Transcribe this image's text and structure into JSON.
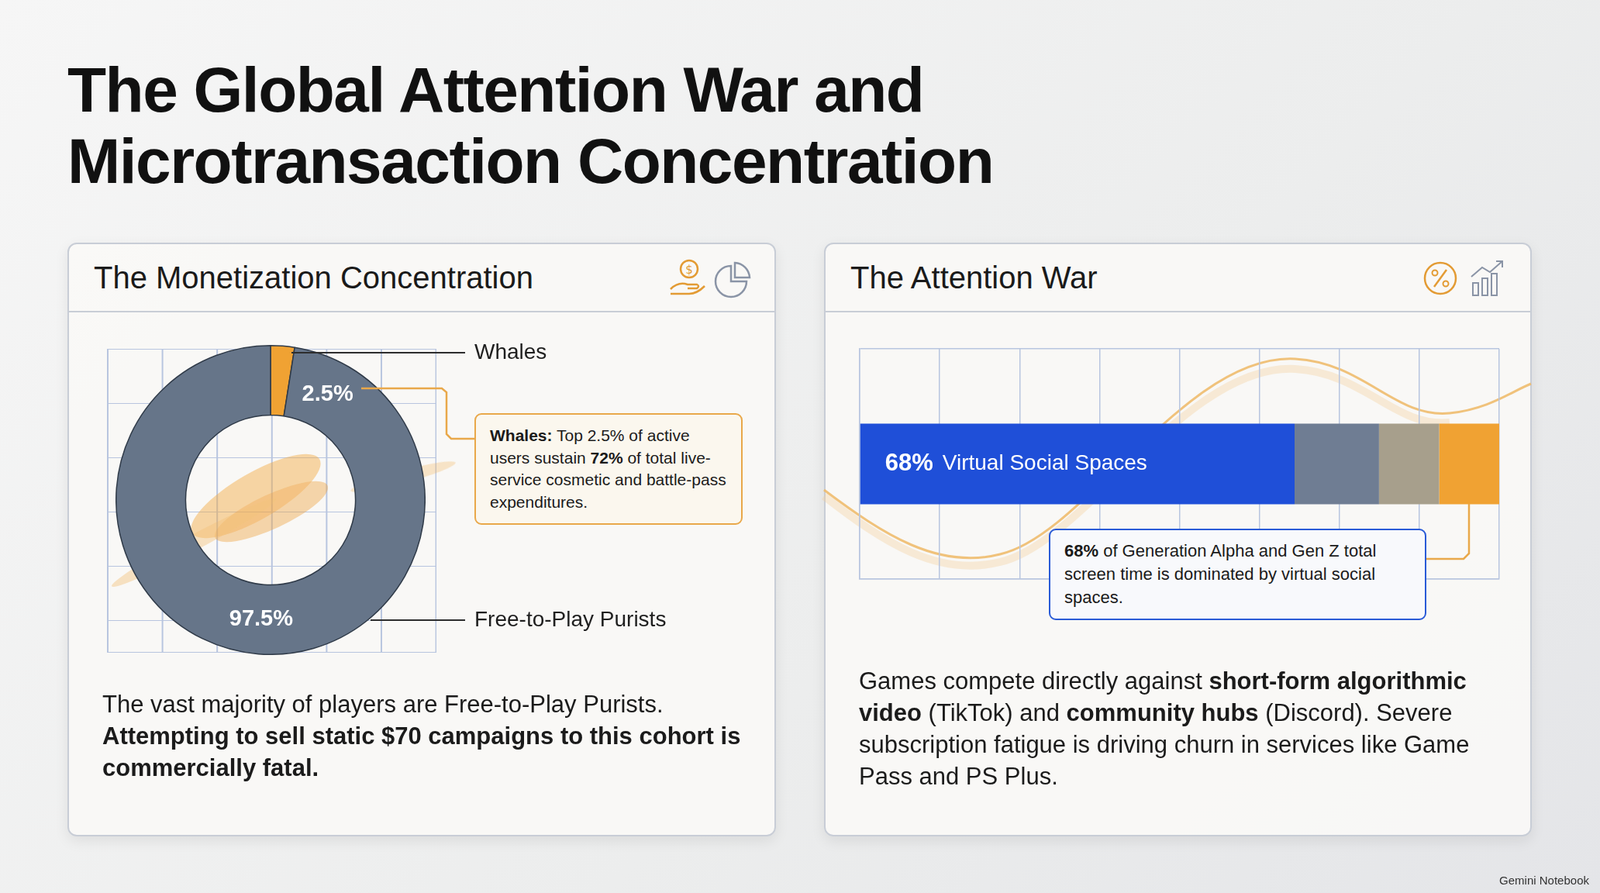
{
  "title": "The Global Attention War and Microtransaction Concentration",
  "footer": "Gemini Notebook",
  "chart_data": [
    {
      "type": "doughnut",
      "title": "The Monetization Concentration",
      "categories": [
        "Whales",
        "Free-to-Play Purists"
      ],
      "values": [
        2.5,
        97.5
      ],
      "value_labels": [
        "2.5%",
        "97.5%"
      ],
      "colors": [
        "#f0a233",
        "#667589"
      ],
      "data_labels": true,
      "annotation": [
        {
          "text": "Whales:",
          "bold": true
        },
        {
          "text": " Top 2.5% of active users sustain "
        },
        {
          "text": "72%",
          "bold": true
        },
        {
          "text": " of total live-service cosmetic and battle-pass expenditures."
        }
      ],
      "note": [
        {
          "text": "The vast majority of players are Free-to-Play Purists. "
        },
        {
          "text": "Attempting to sell static $70 campaigns to this cohort is commercially fatal.",
          "bold": true
        }
      ]
    },
    {
      "type": "bar",
      "title": "The Attention War",
      "orientation": "horizontal",
      "stacked": true,
      "categories": [
        null
      ],
      "series": [
        {
          "name": "Virtual Social Spaces",
          "color": "#1f4fd8",
          "values": [
            68
          ],
          "value_labels": [
            "68%"
          ]
        },
        {
          "name": null,
          "color": "#6f7d93",
          "values": [
            13.2
          ]
        },
        {
          "name": null,
          "color": "#a79f8c",
          "values": [
            9.4
          ]
        },
        {
          "name": null,
          "color": "#f0a233",
          "values": [
            9.4
          ]
        }
      ],
      "xlim": [
        0,
        100
      ],
      "xticks": [
        0,
        12.5,
        25,
        37.5,
        50,
        62.5,
        75,
        87.5,
        100
      ],
      "grid": true,
      "tick_labels": false,
      "data_labels": true,
      "annotation": [
        {
          "text": "68%",
          "bold": true
        },
        {
          "text": " of Generation Alpha and Gen Z total screen time is dominated by virtual social spaces."
        }
      ],
      "note": [
        {
          "text": "Games compete directly against "
        },
        {
          "text": "short-form algorithmic video",
          "bold": true
        },
        {
          "text": " (TikTok) and "
        },
        {
          "text": "community hubs",
          "bold": true
        },
        {
          "text": " (Discord). Severe subscription fatigue is driving churn in services like Game Pass and PS Plus."
        }
      ]
    }
  ]
}
